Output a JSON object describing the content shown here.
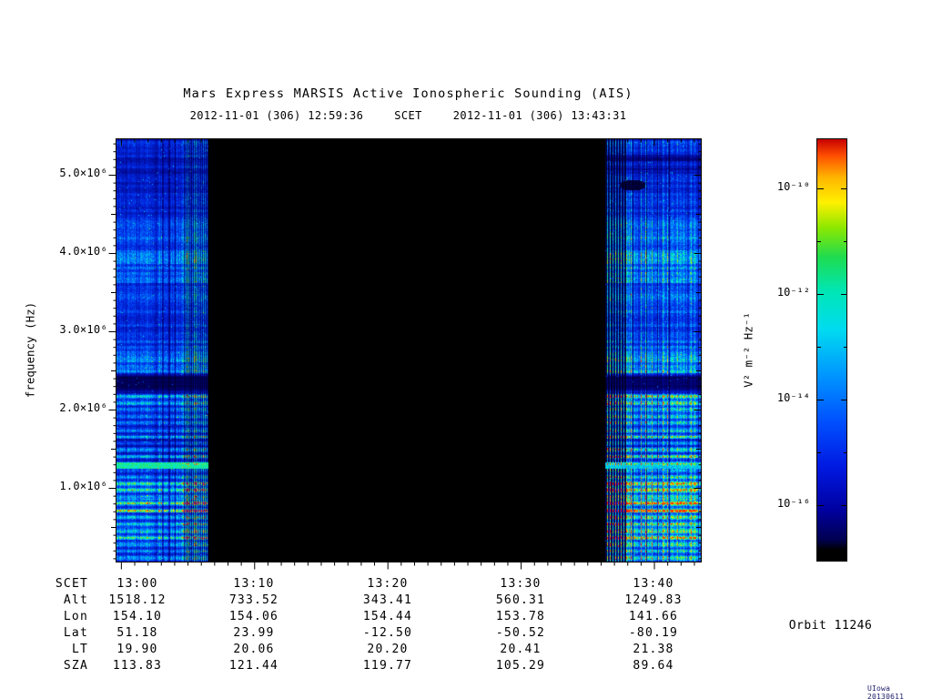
{
  "title": "Mars Express MARSIS Active Ionospheric Sounding (AIS)",
  "header": {
    "start_time": "2012-11-01 (306) 12:59:36",
    "scet_label": "SCET",
    "end_time": "2012-11-01 (306) 13:43:31"
  },
  "chart_data": {
    "type": "heatmap",
    "title": "Mars Express MARSIS Active Ionospheric Sounding (AIS)",
    "x_axis": {
      "start_scet": "12:59:36",
      "end_scet": "13:43:31",
      "total_seconds": 2635,
      "ticks": [
        {
          "label": "13:00",
          "seconds_from_start": 24
        },
        {
          "label": "13:10",
          "seconds_from_start": 624
        },
        {
          "label": "13:20",
          "seconds_from_start": 1224
        },
        {
          "label": "13:30",
          "seconds_from_start": 1824
        },
        {
          "label": "13:40",
          "seconds_from_start": 2424
        }
      ]
    },
    "y_axis": {
      "label": "frequency (Hz)",
      "units": "Hz",
      "range_hz": [
        60000,
        5470000
      ],
      "ticks": [
        {
          "label": "1.0×10⁶",
          "value_mhz": 1
        },
        {
          "label": "2.0×10⁶",
          "value_mhz": 2
        },
        {
          "label": "3.0×10⁶",
          "value_mhz": 3
        },
        {
          "label": "4.0×10⁶",
          "value_mhz": 4
        },
        {
          "label": "5.0×10⁶",
          "value_mhz": 5
        }
      ]
    },
    "colorbar": {
      "label": "V² m⁻² Hz⁻¹",
      "scale": "log",
      "tick_labels": [
        "10⁻¹⁰",
        "10⁻¹²",
        "10⁻¹⁴",
        "10⁻¹⁶"
      ],
      "gradient_top_to_bottom": [
        "#c80000",
        "#ff5000",
        "#ffb400",
        "#fff000",
        "#8ce800",
        "#1edc50",
        "#00e6b4",
        "#00dcf0",
        "#0096ff",
        "#0050ff",
        "#0018e0",
        "#0000a0",
        "#000050"
      ]
    },
    "features": {
      "background": "black where no AIS data (mid-pass receiver gap)",
      "data_segments_scet": [
        [
          "12:59:36",
          "13:02:30"
        ],
        [
          "13:36:20",
          "13:43:31"
        ]
      ],
      "absorption_band_hz": 2350000,
      "plasma_line_hz": 1280000,
      "data_palette": "mostly blue noise with cyan/green vertical striping, brighter toward low frequencies"
    }
  },
  "ephemeris_table": {
    "rows": [
      {
        "label": "SCET",
        "values": [
          "13:00",
          "13:10",
          "13:20",
          "13:30",
          "13:40"
        ]
      },
      {
        "label": "Alt",
        "values": [
          "1518.12",
          "733.52",
          "343.41",
          "560.31",
          "1249.83"
        ]
      },
      {
        "label": "Lon",
        "values": [
          "154.10",
          "154.06",
          "154.44",
          "153.78",
          "141.66"
        ]
      },
      {
        "label": "Lat",
        "values": [
          "51.18",
          "23.99",
          "-12.50",
          "-50.52",
          "-80.19"
        ]
      },
      {
        "label": "LT",
        "values": [
          "19.90",
          "20.06",
          "20.20",
          "20.41",
          "21.38"
        ]
      },
      {
        "label": "SZA",
        "values": [
          "113.83",
          "121.44",
          "119.77",
          "105.29",
          "89.64"
        ]
      }
    ]
  },
  "orbit_label": "Orbit 11246",
  "credit": "UIowa 20130611"
}
